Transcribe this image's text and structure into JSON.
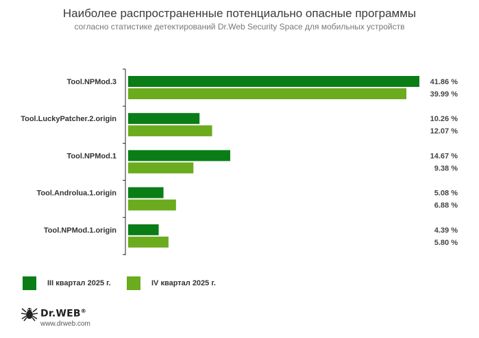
{
  "header": {
    "title": "Наиболее распространенные потенциально опасные программы",
    "subtitle": "согласно статистике детектирований Dr.Web Security Space для мобильных устройств"
  },
  "colors": {
    "series1": "#0a7d16",
    "series2": "#6bab1e",
    "axis": "#222222"
  },
  "chart_data": {
    "type": "bar",
    "orientation": "horizontal",
    "categories": [
      "Tool.NPMod.3",
      "Tool.LuckyPatcher.2.origin",
      "Tool.NPMod.1",
      "Tool.Androlua.1.origin",
      "Tool.NPMod.1.origin"
    ],
    "series": [
      {
        "name": "III квартал 2025 г.",
        "values": [
          41.86,
          10.26,
          14.67,
          5.08,
          4.39
        ],
        "labels": [
          "41.86 %",
          "10.26 %",
          "14.67 %",
          "5.08 %",
          "4.39 %"
        ]
      },
      {
        "name": "IV квартал 2025 г.",
        "values": [
          39.99,
          12.07,
          9.38,
          6.88,
          5.8
        ],
        "labels": [
          "39.99 %",
          "12.07 %",
          "9.38 %",
          "6.88 %",
          "5.80 %"
        ]
      }
    ],
    "xlim": [
      0,
      41.86
    ],
    "grid": false,
    "legend_placement": "bottom-left",
    "title": "Наиболее распространенные потенциально опасные программы",
    "subtitle": "согласно статистике детектирований Dr.Web Security Space для мобильных устройств"
  },
  "footer": {
    "brand": "Dr.WEB",
    "registered": "®",
    "site": "www.drweb.com",
    "logo_icon": "spider-icon"
  }
}
